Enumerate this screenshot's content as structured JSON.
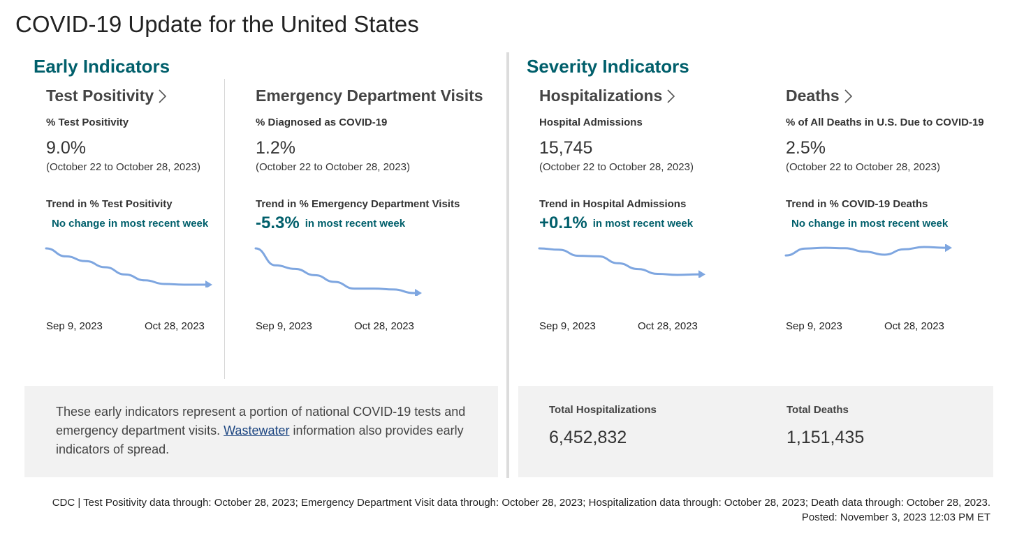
{
  "page_title": "COVID-19 Update for the United States",
  "sections": {
    "early": "Early Indicators",
    "severity": "Severity Indicators"
  },
  "cards": [
    {
      "title": "Test Positivity",
      "subtitle": "% Test Positivity",
      "value": "9.0%",
      "range": "(October 22 to October 28, 2023)",
      "trend_label": "Trend in % Test Positivity",
      "trend_big": "",
      "trend_text": "No change in most recent week",
      "start_date": "Sep 9, 2023",
      "end_date": "Oct 28, 2023",
      "sparkline": [
        0,
        0.22,
        0.35,
        0.52,
        0.72,
        0.88,
        0.98,
        1.0,
        1.0
      ]
    },
    {
      "title": "Emergency Department Visits",
      "subtitle": "% Diagnosed as COVID-19",
      "value": "1.2%",
      "range": "(October 22 to October 28, 2023)",
      "trend_label": "Trend in % Emergency Department Visits",
      "trend_big": "-5.3%",
      "trend_text": "in most recent week",
      "start_date": "Sep 9, 2023",
      "end_date": "Oct 28, 2023",
      "sparkline": [
        0,
        0.38,
        0.46,
        0.6,
        0.75,
        0.9,
        0.9,
        0.92,
        1.0
      ]
    },
    {
      "title": "Hospitalizations",
      "subtitle": "Hospital Admissions",
      "value": "15,745",
      "range": "(October 22 to October 28, 2023)",
      "trend_label": "Trend in Hospital Admissions",
      "trend_big": "+0.1%",
      "trend_text": "in most recent week",
      "start_date": "Sep 9, 2023",
      "end_date": "Oct 28, 2023",
      "sparkline": [
        0,
        0.05,
        0.28,
        0.3,
        0.56,
        0.78,
        0.96,
        1.0,
        0.98
      ]
    },
    {
      "title": "Deaths",
      "subtitle": "% of All Deaths in U.S. Due to COVID-19",
      "value": "2.5%",
      "range": "(October 22 to October 28, 2023)",
      "trend_label": "Trend in % COVID-19 Deaths",
      "trend_big": "",
      "trend_text": "No change in most recent week",
      "start_date": "Sep 9, 2023",
      "end_date": "Oct 28, 2023",
      "sparkline": [
        0.55,
        0.1,
        0.05,
        0.08,
        0.3,
        0.5,
        0.15,
        0.0,
        0.05
      ]
    }
  ],
  "early_note": {
    "before": "These early indicators represent a portion of national COVID-19 tests and emergency department visits. ",
    "link": "Wastewater",
    "after": " information also provides early indicators of spread."
  },
  "totals": {
    "hosp_label": "Total Hospitalizations",
    "hosp_value": "6,452,832",
    "deaths_label": "Total Deaths",
    "deaths_value": "1,151,435"
  },
  "footer": {
    "sources": "CDC | Test Positivity data through: October 28, 2023; Emergency Department Visit data through: October 28, 2023; Hospitalization data through: October 28, 2023; Death data through: October 28, 2023.",
    "posted": "Posted: November 3, 2023 12:03 PM ET"
  },
  "colors": {
    "accent": "#005f6b",
    "sparkline": "#7ea6e0",
    "panel_bg": "#f2f2f2"
  }
}
